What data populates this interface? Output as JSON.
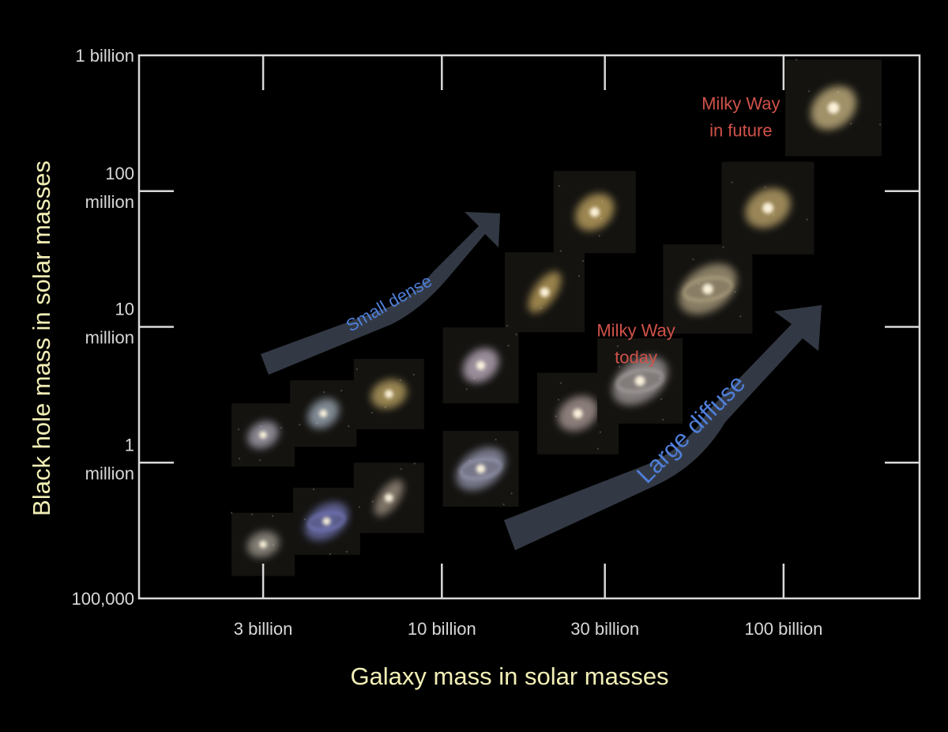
{
  "chart_data": {
    "type": "scatter",
    "title": "",
    "xlabel": "Galaxy mass in solar masses",
    "ylabel": "Black hole mass in solar masses",
    "x_scale": "log",
    "y_scale": "log",
    "grid": false,
    "xlim": [
      1300000000,
      250000000000
    ],
    "ylim": [
      100000,
      1000000000
    ],
    "x_ticks": [
      {
        "value": 3000000000,
        "label": "3 billion"
      },
      {
        "value": 10000000000,
        "label": "10 billion"
      },
      {
        "value": 30000000000,
        "label": "30 billion"
      },
      {
        "value": 100000000000,
        "label": "100 billion"
      }
    ],
    "y_ticks": [
      {
        "value": 100000,
        "label": [
          "100,000"
        ]
      },
      {
        "value": 1000000,
        "label": [
          "1",
          "million"
        ]
      },
      {
        "value": 10000000,
        "label": [
          "10",
          "million"
        ]
      },
      {
        "value": 100000000,
        "label": [
          "100",
          "million"
        ]
      },
      {
        "value": 1000000000,
        "label": [
          "1 billion"
        ]
      }
    ],
    "points": [
      {
        "x": 3000000000,
        "y": 250000,
        "color": "#c9c2b6",
        "shape": "round"
      },
      {
        "x": 3000000000,
        "y": 1600000,
        "color": "#d7d3e6",
        "shape": "round"
      },
      {
        "x": 4500000000,
        "y": 2300000,
        "color": "#c8d8ea",
        "shape": "round"
      },
      {
        "x": 4600000000,
        "y": 370000,
        "color": "#8b8fe0",
        "shape": "spiral"
      },
      {
        "x": 7000000000,
        "y": 3200000,
        "color": "#efd07e",
        "shape": "round"
      },
      {
        "x": 7000000000,
        "y": 550000,
        "color": "#c9b7a5",
        "shape": "edge"
      },
      {
        "x": 13000000000,
        "y": 5200000,
        "color": "#f3dff7",
        "shape": "round"
      },
      {
        "x": 13000000000,
        "y": 900000,
        "color": "#b7b9d8",
        "shape": "spiral"
      },
      {
        "x": 20000000000,
        "y": 18000000,
        "color": "#f2cc73",
        "shape": "edge"
      },
      {
        "x": 25000000000,
        "y": 2300000,
        "color": "#d9c3c0",
        "shape": "round"
      },
      {
        "x": 28000000000,
        "y": 70000000,
        "color": "#f7d27a",
        "shape": "round"
      },
      {
        "x": 38000000000,
        "y": 4000000,
        "color": "#cbc2c3",
        "shape": "spiral"
      },
      {
        "x": 60000000000,
        "y": 19000000,
        "color": "#d7c69e",
        "shape": "spiral"
      },
      {
        "x": 90000000000,
        "y": 75000000,
        "color": "#f2d287",
        "shape": "round"
      },
      {
        "x": 140000000000,
        "y": 410000000,
        "color": "#ffe6a5",
        "shape": "round"
      }
    ],
    "annotations": [
      {
        "text": [
          "Milky Way",
          "in future"
        ],
        "x": 75000000000,
        "y": 400000000
      },
      {
        "text": [
          "Milky Way",
          "today"
        ],
        "x": 37000000000,
        "y": 8500000
      }
    ],
    "arrows": [
      {
        "label": "Small   dense",
        "color": "#333944",
        "text_color": "#4f7fd8"
      },
      {
        "label": "Large    diffuse",
        "color": "#333944",
        "text_color": "#4f7fd8"
      }
    ]
  }
}
